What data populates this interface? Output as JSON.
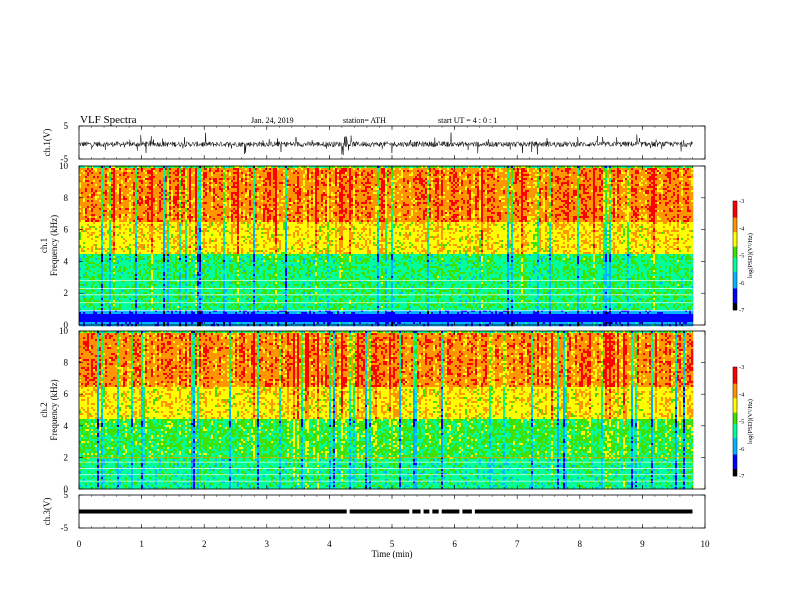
{
  "header": {
    "title": "VLF  Spectra",
    "date": "Jan. 24, 2019",
    "station": "station= ATH",
    "start_ut": "start  UT  =   4  : 0   : 1"
  },
  "chart_data": [
    {
      "type": "line",
      "name": "ch1-waveform",
      "ylabel": "ch.1(V)",
      "ylim": [
        -5,
        5
      ],
      "xlim": [
        0,
        10
      ],
      "yticks": [
        "5",
        "-5"
      ],
      "data_extent_min": 9.8,
      "approx_range": [
        -2,
        1
      ]
    },
    {
      "type": "heatmap",
      "name": "ch1-spectrogram",
      "ylabel": "ch.1\nFrequency (kHz)",
      "ylim": [
        0,
        10
      ],
      "xlim": [
        0,
        10
      ],
      "yticks": [
        "0",
        "2",
        "4",
        "6",
        "8",
        "10"
      ],
      "color_label": "log(PSD)(V²/Hz)",
      "color_range": [
        -7,
        -3
      ],
      "color_ticks": [
        "-3",
        "-4",
        "-5",
        "-6",
        "-7"
      ],
      "bands": [
        {
          "from_khz": 0,
          "to_khz": 1,
          "log_psd": -6
        },
        {
          "from_khz": 1,
          "to_khz": 4.5,
          "log_psd": -5.2
        },
        {
          "from_khz": 4.5,
          "to_khz": 6.5,
          "log_psd": -4.3
        },
        {
          "from_khz": 6.5,
          "to_khz": 10,
          "log_psd": -3.8
        }
      ]
    },
    {
      "type": "heatmap",
      "name": "ch2-spectrogram",
      "ylabel": "ch.2\nFrequency (kHz)",
      "ylim": [
        0,
        10
      ],
      "xlim": [
        0,
        10
      ],
      "yticks": [
        "0",
        "2",
        "4",
        "6",
        "8",
        "10"
      ],
      "color_label": "log(PSD)(V²/Hz)",
      "color_range": [
        -7,
        -3
      ],
      "color_ticks": [
        "-3",
        "-4",
        "-5",
        "-6",
        "-7"
      ],
      "bands": [
        {
          "from_khz": 0,
          "to_khz": 2,
          "log_psd": -5.3
        },
        {
          "from_khz": 2,
          "to_khz": 4.5,
          "log_psd": -5.0
        },
        {
          "from_khz": 4.5,
          "to_khz": 6.5,
          "log_psd": -4.3
        },
        {
          "from_khz": 6.5,
          "to_khz": 10,
          "log_psd": -3.8
        }
      ]
    },
    {
      "type": "line",
      "name": "ch3-trigger",
      "ylabel": "ch.3(V)",
      "ylim": [
        -5,
        5
      ],
      "xlim": [
        0,
        10
      ],
      "yticks": [
        "5",
        "-5"
      ],
      "level_v": 0,
      "gaps_min": [
        4.3,
        5.3,
        5.48,
        5.62,
        5.77,
        6.1,
        6.3
      ]
    }
  ],
  "x_axis": {
    "label": "Time  (min)",
    "ticks": [
      "0",
      "1",
      "2",
      "3",
      "4",
      "5",
      "6",
      "7",
      "8",
      "9",
      "10"
    ]
  },
  "colormap": [
    "#000000",
    "#0000ff",
    "#00b4ff",
    "#00ff9c",
    "#40e000",
    "#ffff00",
    "#ff9600",
    "#ff0000",
    "#ffffff"
  ]
}
